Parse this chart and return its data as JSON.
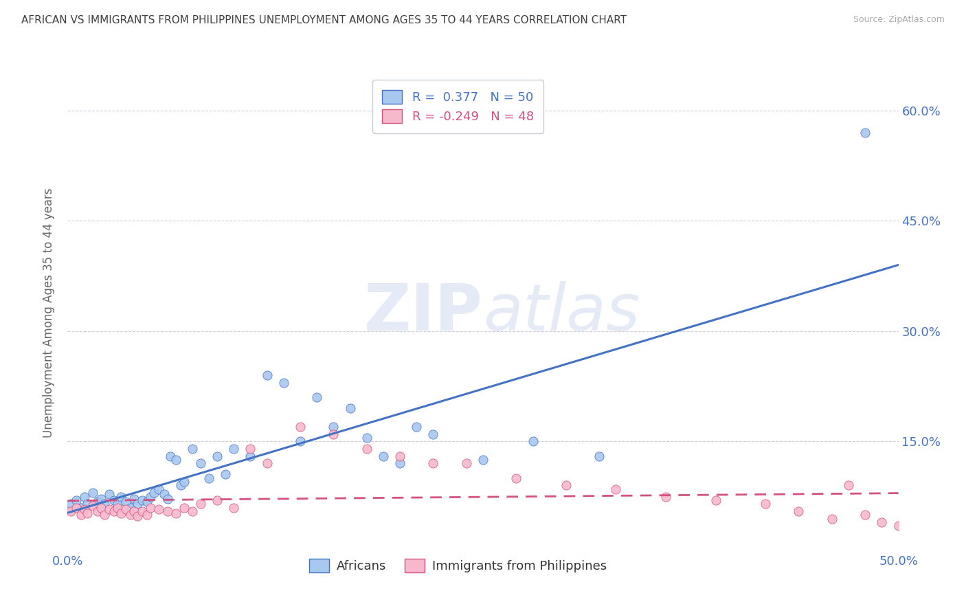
{
  "title": "AFRICAN VS IMMIGRANTS FROM PHILIPPINES UNEMPLOYMENT AMONG AGES 35 TO 44 YEARS CORRELATION CHART",
  "source": "Source: ZipAtlas.com",
  "ylabel": "Unemployment Among Ages 35 to 44 years",
  "xlim": [
    0.0,
    0.5
  ],
  "ylim": [
    0.0,
    0.65
  ],
  "xticks": [
    0.0,
    0.05,
    0.1,
    0.15,
    0.2,
    0.25,
    0.3,
    0.35,
    0.4,
    0.45,
    0.5
  ],
  "yticks": [
    0.0,
    0.15,
    0.3,
    0.45,
    0.6
  ],
  "yticklabels": [
    "",
    "15.0%",
    "30.0%",
    "45.0%",
    "60.0%"
  ],
  "african_R": 0.377,
  "african_N": 50,
  "philippines_R": -0.249,
  "philippines_N": 48,
  "african_color": "#a8c8f0",
  "philippines_color": "#f8b8cc",
  "african_line_color": "#4472c4",
  "philippines_line_color": "#d45080",
  "legend_label_african": "Africans",
  "legend_label_philippines": "Immigrants from Philippines",
  "watermark_zip": "ZIP",
  "watermark_atlas": "atlas",
  "background_color": "#ffffff",
  "grid_color": "#c8c8d4",
  "title_color": "#404040",
  "axis_label_color": "#4472c4",
  "african_x": [
    0.002,
    0.005,
    0.008,
    0.01,
    0.012,
    0.015,
    0.018,
    0.02,
    0.022,
    0.025,
    0.028,
    0.03,
    0.032,
    0.035,
    0.038,
    0.04,
    0.042,
    0.045,
    0.048,
    0.05,
    0.052,
    0.055,
    0.058,
    0.06,
    0.062,
    0.065,
    0.068,
    0.07,
    0.075,
    0.08,
    0.085,
    0.09,
    0.095,
    0.1,
    0.11,
    0.12,
    0.13,
    0.14,
    0.15,
    0.16,
    0.17,
    0.18,
    0.19,
    0.2,
    0.21,
    0.22,
    0.25,
    0.28,
    0.32,
    0.48
  ],
  "african_y": [
    0.065,
    0.07,
    0.06,
    0.075,
    0.065,
    0.08,
    0.068,
    0.072,
    0.065,
    0.078,
    0.07,
    0.065,
    0.075,
    0.068,
    0.06,
    0.072,
    0.065,
    0.07,
    0.068,
    0.075,
    0.08,
    0.085,
    0.078,
    0.072,
    0.13,
    0.125,
    0.09,
    0.095,
    0.14,
    0.12,
    0.1,
    0.13,
    0.105,
    0.14,
    0.13,
    0.24,
    0.23,
    0.15,
    0.21,
    0.17,
    0.195,
    0.155,
    0.13,
    0.12,
    0.17,
    0.16,
    0.125,
    0.15,
    0.13,
    0.57
  ],
  "philippines_x": [
    0.002,
    0.005,
    0.008,
    0.01,
    0.012,
    0.015,
    0.018,
    0.02,
    0.022,
    0.025,
    0.028,
    0.03,
    0.032,
    0.035,
    0.038,
    0.04,
    0.042,
    0.045,
    0.048,
    0.05,
    0.055,
    0.06,
    0.065,
    0.07,
    0.075,
    0.08,
    0.09,
    0.1,
    0.11,
    0.12,
    0.14,
    0.16,
    0.18,
    0.2,
    0.22,
    0.24,
    0.27,
    0.3,
    0.33,
    0.36,
    0.39,
    0.42,
    0.44,
    0.46,
    0.47,
    0.48,
    0.49,
    0.5
  ],
  "philippines_y": [
    0.055,
    0.06,
    0.05,
    0.058,
    0.052,
    0.062,
    0.055,
    0.06,
    0.05,
    0.058,
    0.055,
    0.06,
    0.052,
    0.058,
    0.05,
    0.055,
    0.048,
    0.055,
    0.05,
    0.06,
    0.058,
    0.055,
    0.052,
    0.06,
    0.055,
    0.065,
    0.07,
    0.06,
    0.14,
    0.12,
    0.17,
    0.16,
    0.14,
    0.13,
    0.12,
    0.12,
    0.1,
    0.09,
    0.085,
    0.075,
    0.07,
    0.065,
    0.055,
    0.045,
    0.09,
    0.05,
    0.04,
    0.035
  ]
}
